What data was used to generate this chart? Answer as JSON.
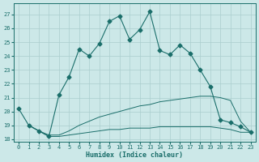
{
  "xlabel": "Humidex (Indice chaleur)",
  "xlim": [
    -0.5,
    23.5
  ],
  "ylim": [
    17.8,
    27.8
  ],
  "yticks": [
    18,
    19,
    20,
    21,
    22,
    23,
    24,
    25,
    26,
    27
  ],
  "xticks": [
    0,
    1,
    2,
    3,
    4,
    5,
    6,
    7,
    8,
    9,
    10,
    11,
    12,
    13,
    14,
    15,
    16,
    17,
    18,
    19,
    20,
    21,
    22,
    23
  ],
  "bg_color": "#cce8e8",
  "line_color": "#1a6e6a",
  "grid_color": "#aacece",
  "line1_x": [
    0,
    1,
    2,
    3,
    4,
    5,
    6,
    7,
    8,
    9,
    10,
    11,
    12,
    13,
    14,
    15,
    16,
    17,
    18,
    19,
    20,
    21,
    22,
    23
  ],
  "line1_y": [
    20.2,
    19.0,
    18.6,
    18.2,
    21.2,
    22.5,
    24.5,
    24.0,
    24.9,
    26.5,
    26.9,
    25.2,
    25.9,
    27.2,
    24.4,
    24.1,
    24.8,
    24.2,
    23.0,
    21.8,
    19.4,
    19.2,
    18.9,
    18.5
  ],
  "line2_x": [
    1,
    2,
    3,
    4,
    5,
    6,
    7,
    8,
    9,
    10,
    11,
    12,
    13,
    14,
    15,
    16,
    17,
    18,
    19,
    20,
    21,
    22,
    23
  ],
  "line2_y": [
    19.0,
    18.6,
    18.3,
    18.3,
    18.6,
    19.0,
    19.3,
    19.6,
    19.8,
    20.0,
    20.2,
    20.4,
    20.5,
    20.7,
    20.8,
    20.9,
    21.0,
    21.1,
    21.1,
    21.0,
    20.8,
    19.3,
    18.5
  ],
  "line3_x": [
    1,
    2,
    3,
    4,
    5,
    6,
    7,
    8,
    9,
    10,
    11,
    12,
    13,
    14,
    15,
    16,
    17,
    18,
    19,
    20,
    21,
    22,
    23
  ],
  "line3_y": [
    19.0,
    18.6,
    18.2,
    18.2,
    18.3,
    18.4,
    18.5,
    18.6,
    18.7,
    18.7,
    18.8,
    18.8,
    18.8,
    18.9,
    18.9,
    18.9,
    18.9,
    18.9,
    18.9,
    18.8,
    18.7,
    18.5,
    18.5
  ]
}
